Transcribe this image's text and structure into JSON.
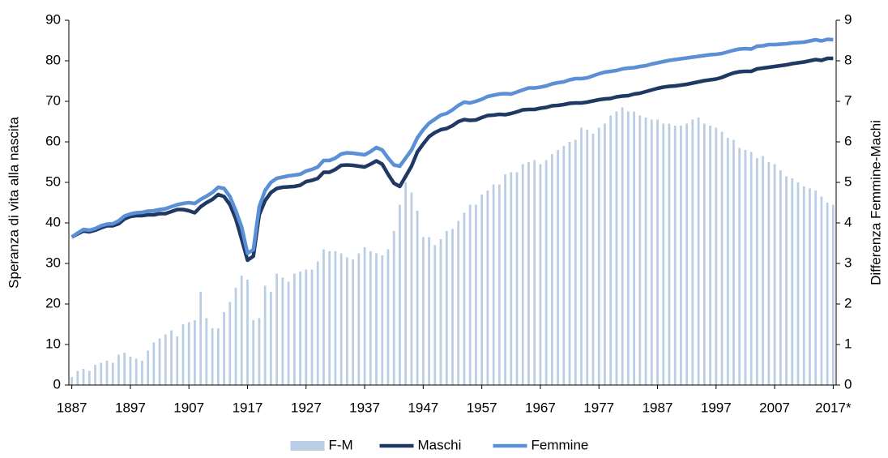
{
  "chart_data": {
    "type": "bar-line",
    "y_label": "Speranza di vita alla nascita",
    "y2_label": "Differenza Femmine-Machi",
    "legend": "bottom",
    "xlim": [
      1886.5,
      2017.5
    ],
    "xticks": [
      1887,
      1897,
      1907,
      1917,
      1927,
      1937,
      1947,
      1957,
      1967,
      1977,
      1987,
      1997,
      2007,
      {
        "value": 2017,
        "label": "2017*"
      }
    ],
    "ylim": [
      0,
      90
    ],
    "yticks": [
      0,
      10,
      20,
      30,
      40,
      50,
      60,
      70,
      80,
      90
    ],
    "y2lim": [
      0,
      9
    ],
    "y2ticks": [
      0,
      1,
      2,
      3,
      4,
      5,
      6,
      7,
      8,
      9
    ],
    "x": [
      1887,
      1888,
      1889,
      1890,
      1891,
      1892,
      1893,
      1894,
      1895,
      1896,
      1897,
      1898,
      1899,
      1900,
      1901,
      1902,
      1903,
      1904,
      1905,
      1906,
      1907,
      1908,
      1909,
      1910,
      1911,
      1912,
      1913,
      1914,
      1915,
      1916,
      1917,
      1918,
      1919,
      1920,
      1921,
      1922,
      1923,
      1924,
      1925,
      1926,
      1927,
      1928,
      1929,
      1930,
      1931,
      1932,
      1933,
      1934,
      1935,
      1936,
      1937,
      1938,
      1939,
      1940,
      1941,
      1942,
      1943,
      1944,
      1945,
      1946,
      1947,
      1948,
      1949,
      1950,
      1951,
      1952,
      1953,
      1954,
      1955,
      1956,
      1957,
      1958,
      1959,
      1960,
      1961,
      1962,
      1963,
      1964,
      1965,
      1966,
      1967,
      1968,
      1969,
      1970,
      1971,
      1972,
      1973,
      1974,
      1975,
      1976,
      1977,
      1978,
      1979,
      1980,
      1981,
      1982,
      1983,
      1984,
      1985,
      1986,
      1987,
      1988,
      1989,
      1990,
      1991,
      1992,
      1993,
      1994,
      1995,
      1996,
      1997,
      1998,
      1999,
      2000,
      2001,
      2002,
      2003,
      2004,
      2005,
      2006,
      2007,
      2008,
      2009,
      2010,
      2011,
      2012,
      2013,
      2014,
      2015,
      2016,
      2017
    ],
    "series": [
      {
        "name": "F-M",
        "type": "bar",
        "axis": "y2",
        "color": "#b9cde5",
        "values": [
          0.2,
          0.35,
          0.4,
          0.35,
          0.5,
          0.55,
          0.6,
          0.55,
          0.75,
          0.8,
          0.7,
          0.65,
          0.6,
          0.85,
          1.05,
          1.15,
          1.25,
          1.35,
          1.2,
          1.5,
          1.55,
          1.6,
          2.3,
          1.65,
          1.4,
          1.4,
          1.8,
          2.05,
          2.4,
          2.7,
          2.6,
          1.6,
          1.65,
          2.45,
          2.3,
          2.75,
          2.65,
          2.55,
          2.75,
          2.8,
          2.85,
          2.85,
          3.05,
          3.35,
          3.3,
          3.3,
          3.25,
          3.15,
          3.1,
          3.25,
          3.4,
          3.3,
          3.25,
          3.2,
          3.35,
          3.8,
          4.45,
          5.0,
          4.75,
          4.3,
          3.65,
          3.65,
          3.45,
          3.6,
          3.8,
          3.85,
          4.05,
          4.25,
          4.45,
          4.45,
          4.7,
          4.8,
          4.95,
          4.95,
          5.2,
          5.25,
          5.25,
          5.45,
          5.5,
          5.55,
          5.45,
          5.55,
          5.7,
          5.8,
          5.9,
          6.0,
          6.05,
          6.35,
          6.3,
          6.2,
          6.35,
          6.45,
          6.65,
          6.75,
          6.85,
          6.75,
          6.75,
          6.65,
          6.6,
          6.55,
          6.55,
          6.45,
          6.45,
          6.4,
          6.4,
          6.45,
          6.55,
          6.6,
          6.45,
          6.4,
          6.35,
          6.25,
          6.1,
          6.05,
          5.85,
          5.8,
          5.75,
          5.6,
          5.65,
          5.5,
          5.45,
          5.3,
          5.15,
          5.1,
          5.0,
          4.9,
          4.85,
          4.8,
          4.65,
          4.5,
          4.45
        ]
      },
      {
        "name": "Maschi",
        "type": "line",
        "color": "#1f3864",
        "values": [
          36.5,
          37.3,
          38.0,
          37.8,
          38.2,
          38.8,
          39.3,
          39.3,
          39.8,
          41.0,
          41.6,
          41.8,
          41.8,
          42.0,
          42.0,
          42.3,
          42.3,
          42.8,
          43.3,
          43.3,
          43.0,
          42.5,
          44.0,
          45.0,
          45.8,
          47.0,
          46.5,
          44.5,
          41.0,
          36.0,
          30.8,
          31.8,
          42.0,
          45.5,
          47.5,
          48.5,
          48.8,
          48.9,
          49.0,
          49.3,
          50.2,
          50.5,
          51.0,
          52.5,
          52.5,
          53.2,
          54.2,
          54.3,
          54.2,
          54.0,
          53.8,
          54.5,
          55.3,
          54.5,
          52.0,
          49.8,
          49.0,
          51.5,
          54.0,
          57.5,
          59.5,
          61.3,
          62.3,
          63.0,
          63.3,
          64.0,
          65.0,
          65.5,
          65.3,
          65.4,
          66.0,
          66.5,
          66.6,
          66.8,
          66.7,
          67.0,
          67.4,
          67.9,
          68.0,
          68.0,
          68.3,
          68.5,
          68.9,
          69.0,
          69.2,
          69.5,
          69.6,
          69.6,
          69.8,
          70.1,
          70.4,
          70.6,
          70.7,
          71.1,
          71.3,
          71.4,
          71.8,
          72.0,
          72.4,
          72.8,
          73.2,
          73.5,
          73.7,
          73.8,
          74.0,
          74.2,
          74.5,
          74.8,
          75.1,
          75.3,
          75.5,
          75.9,
          76.5,
          77.0,
          77.3,
          77.4,
          77.4,
          78.0,
          78.2,
          78.4,
          78.6,
          78.8,
          79.0,
          79.3,
          79.5,
          79.7,
          80.0,
          80.3,
          80.1,
          80.6,
          80.6
        ]
      },
      {
        "name": "Femmine",
        "type": "line",
        "color": "#5b8fd6",
        "values": [
          36.5,
          37.5,
          38.4,
          38.2,
          38.6,
          39.3,
          39.7,
          39.8,
          40.5,
          41.7,
          42.2,
          42.5,
          42.6,
          42.9,
          43.0,
          43.3,
          43.5,
          44.0,
          44.5,
          44.8,
          45.0,
          44.8,
          45.8,
          46.6,
          47.5,
          48.8,
          48.5,
          46.5,
          43.0,
          39.0,
          32.5,
          33.4,
          44.0,
          48.0,
          50.0,
          51.0,
          51.3,
          51.6,
          51.8,
          52.0,
          52.8,
          53.2,
          53.8,
          55.4,
          55.4,
          56.0,
          57.0,
          57.3,
          57.2,
          57.0,
          56.8,
          57.6,
          58.6,
          58.0,
          56.0,
          54.3,
          54.0,
          56.0,
          58.0,
          61.0,
          63.0,
          64.6,
          65.6,
          66.6,
          67.0,
          67.9,
          69.0,
          69.8,
          69.6,
          70.0,
          70.5,
          71.2,
          71.5,
          71.8,
          71.9,
          71.8,
          72.3,
          72.8,
          73.3,
          73.3,
          73.5,
          73.8,
          74.3,
          74.6,
          74.8,
          75.3,
          75.6,
          75.6,
          75.8,
          76.3,
          76.8,
          77.2,
          77.4,
          77.6,
          78.0,
          78.2,
          78.3,
          78.6,
          78.8,
          79.2,
          79.5,
          79.8,
          80.1,
          80.3,
          80.5,
          80.7,
          80.9,
          81.1,
          81.3,
          81.5,
          81.6,
          81.8,
          82.2,
          82.6,
          82.9,
          83.0,
          82.9,
          83.6,
          83.7,
          84.0,
          84.0,
          84.1,
          84.2,
          84.4,
          84.5,
          84.6,
          84.9,
          85.2,
          84.9,
          85.3,
          85.2
        ]
      }
    ]
  }
}
